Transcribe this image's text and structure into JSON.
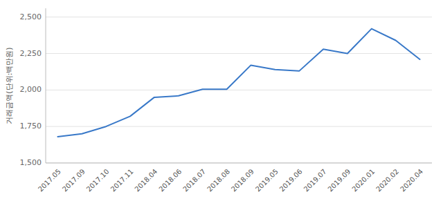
{
  "chart_data": {
    "type": "line",
    "y_label": "거래금액(단위:백만원)",
    "categories": [
      "2017.05",
      "2017.09",
      "2017.10",
      "2017.11",
      "2018.04",
      "2018.06",
      "2018.07",
      "2018.08",
      "2018.09",
      "2019.05",
      "2019.06",
      "2019.07",
      "2019.09",
      "2020.01",
      "2020.02",
      "2020.04"
    ],
    "values": [
      1680,
      1700,
      1750,
      1820,
      1950,
      1960,
      2005,
      2005,
      2170,
      2140,
      2130,
      2280,
      2250,
      2420,
      2340,
      2210
    ],
    "color": "#3878c8",
    "ylim": [
      1500,
      2560
    ],
    "yticks": [
      {
        "value": 1500,
        "label": "1,500"
      },
      {
        "value": 1750,
        "label": "1,750"
      },
      {
        "value": 2000,
        "label": "2,000"
      },
      {
        "value": 2250,
        "label": "2,250"
      },
      {
        "value": 2500,
        "label": "2,500"
      }
    ],
    "grid": true
  }
}
